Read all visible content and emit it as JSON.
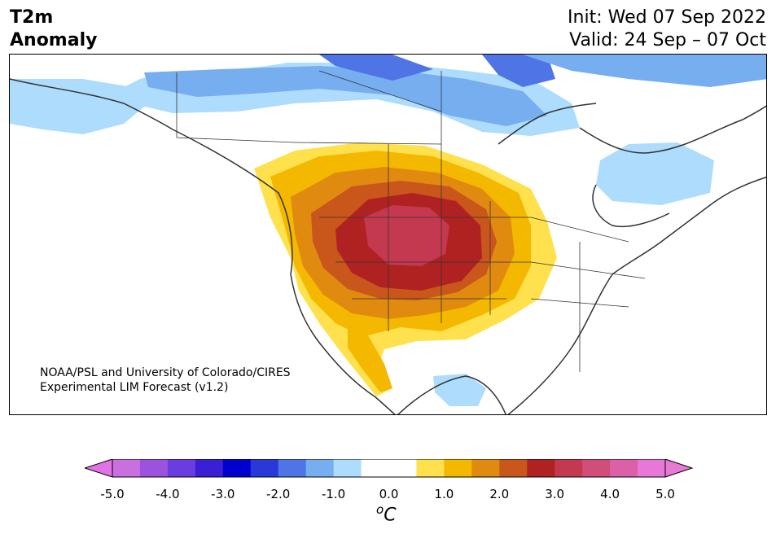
{
  "title": {
    "left_line1": "T2m",
    "left_line2": "Anomaly",
    "init": "Init: Wed 07 Sep 2022",
    "valid": "Valid: 24 Sep – 07 Oct"
  },
  "credit": {
    "line1": "NOAA/PSL and University of Colorado/CIRES",
    "line2": "Experimental LIM Forecast (v1.2)"
  },
  "colorbar": {
    "ticks": [
      "-5.0",
      "-4.0",
      "-3.0",
      "-2.0",
      "-1.0",
      "0.0",
      "1.0",
      "2.0",
      "3.0",
      "4.0",
      "5.0"
    ],
    "units_base": "C",
    "units_sup": "o",
    "under_color": "#e073e6",
    "over_color": "#e87ad6",
    "bins": [
      "#c96fe0",
      "#9b52de",
      "#6a3de0",
      "#3a1fd4",
      "#0000cf",
      "#2838d9",
      "#4f74e6",
      "#76aef0",
      "#addcfc",
      "#ffffff",
      "#ffffff",
      "#ffe14d",
      "#f5b800",
      "#e08b10",
      "#c9561a",
      "#b02222",
      "#c43850",
      "#d14d7a",
      "#dc60a8",
      "#e878d8"
    ]
  },
  "map": {
    "anomaly_colors": {
      "cool_1": "#addcfc",
      "cool_2": "#76aef0",
      "cool_3": "#4f74e6",
      "warm_1": "#ffe14d",
      "warm_2": "#f5b800",
      "warm_3": "#e08b10",
      "warm_4": "#c9561a",
      "warm_5": "#b02222",
      "warm_6": "#c43850",
      "warm_7": "#d14d7a"
    }
  }
}
